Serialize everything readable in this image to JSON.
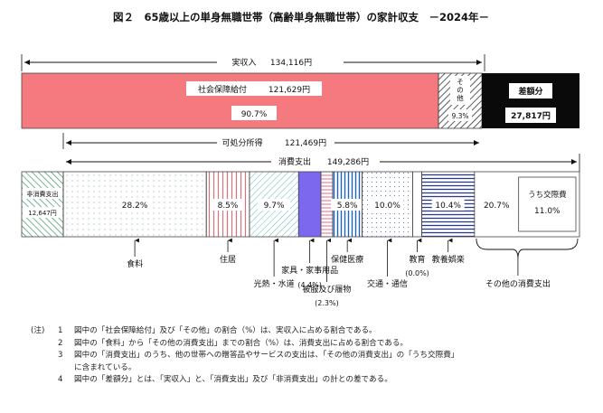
{
  "chart_data": {
    "type": "bar",
    "title": "図２　65歳以上の単身無職世帯（高齢単身無職世帯）の家計収支　－2024年－",
    "income_total": {
      "label": "実収入",
      "value": "134,116円"
    },
    "income": [
      {
        "name": "社会保障給付",
        "value": 121629,
        "value_text": "121,629円",
        "pct": "90.7%"
      },
      {
        "name": "その他",
        "value_text": "",
        "pct": "9.3%"
      },
      {
        "name": "差額分",
        "value": 27817,
        "value_text": "27,817円"
      }
    ],
    "disposable_income": {
      "label": "可処分所得",
      "value": "121,469円"
    },
    "consumption_total": {
      "label": "消費支出",
      "value": "149,286円"
    },
    "non_consumption": {
      "label": "非消費支出",
      "value": "12,647円"
    },
    "expenditure": [
      {
        "name": "食料",
        "pct": 28.2,
        "pct_text": "28.2%"
      },
      {
        "name": "住居",
        "pct": 8.5,
        "pct_text": "8.5%"
      },
      {
        "name": "光熱・水道",
        "pct": 9.7,
        "pct_text": "9.7%"
      },
      {
        "name": "家具・家事用品",
        "pct": 4.4,
        "pct_text": "(4.4%)"
      },
      {
        "name": "被服及び履物",
        "pct": 2.3,
        "pct_text": "(2.3%)"
      },
      {
        "name": "保健医療",
        "pct": 5.8,
        "pct_text": "5.8%"
      },
      {
        "name": "交通・通信",
        "pct": 10.0,
        "pct_text": "10.0%"
      },
      {
        "name": "教育",
        "pct": 0.0,
        "pct_text": "(0.0%)"
      },
      {
        "name": "教養娯楽",
        "pct": 10.4,
        "pct_text": "10.4%"
      },
      {
        "name": "その他の消費支出",
        "pct": 20.7,
        "pct_text": "20.7%"
      }
    ],
    "sub_item": {
      "name": "うち交際費",
      "pct": 11.0,
      "pct_text": "11.0%"
    }
  },
  "notes": {
    "mark": "(注)",
    "items": [
      {
        "num": "1",
        "text": "図中の「社会保障給付」及び「その他」の割合（%）は、実収入に占める割合である。"
      },
      {
        "num": "2",
        "text": "図中の「食料」から「その他の消費支出」までの割合（%）は、消費支出に占める割合である。"
      },
      {
        "num": "3",
        "text": "図中の「消費支出」のうち、他の世帯への贈答品やサービスの支出は、「その他の消費支出」の「うち交際費」"
      },
      {
        "num": "",
        "text": "に含まれている。"
      },
      {
        "num": "4",
        "text": "図中の「差額分」とは、「実収入」と、「消費支出」及び「非消費支出」の計との差である。"
      }
    ]
  }
}
